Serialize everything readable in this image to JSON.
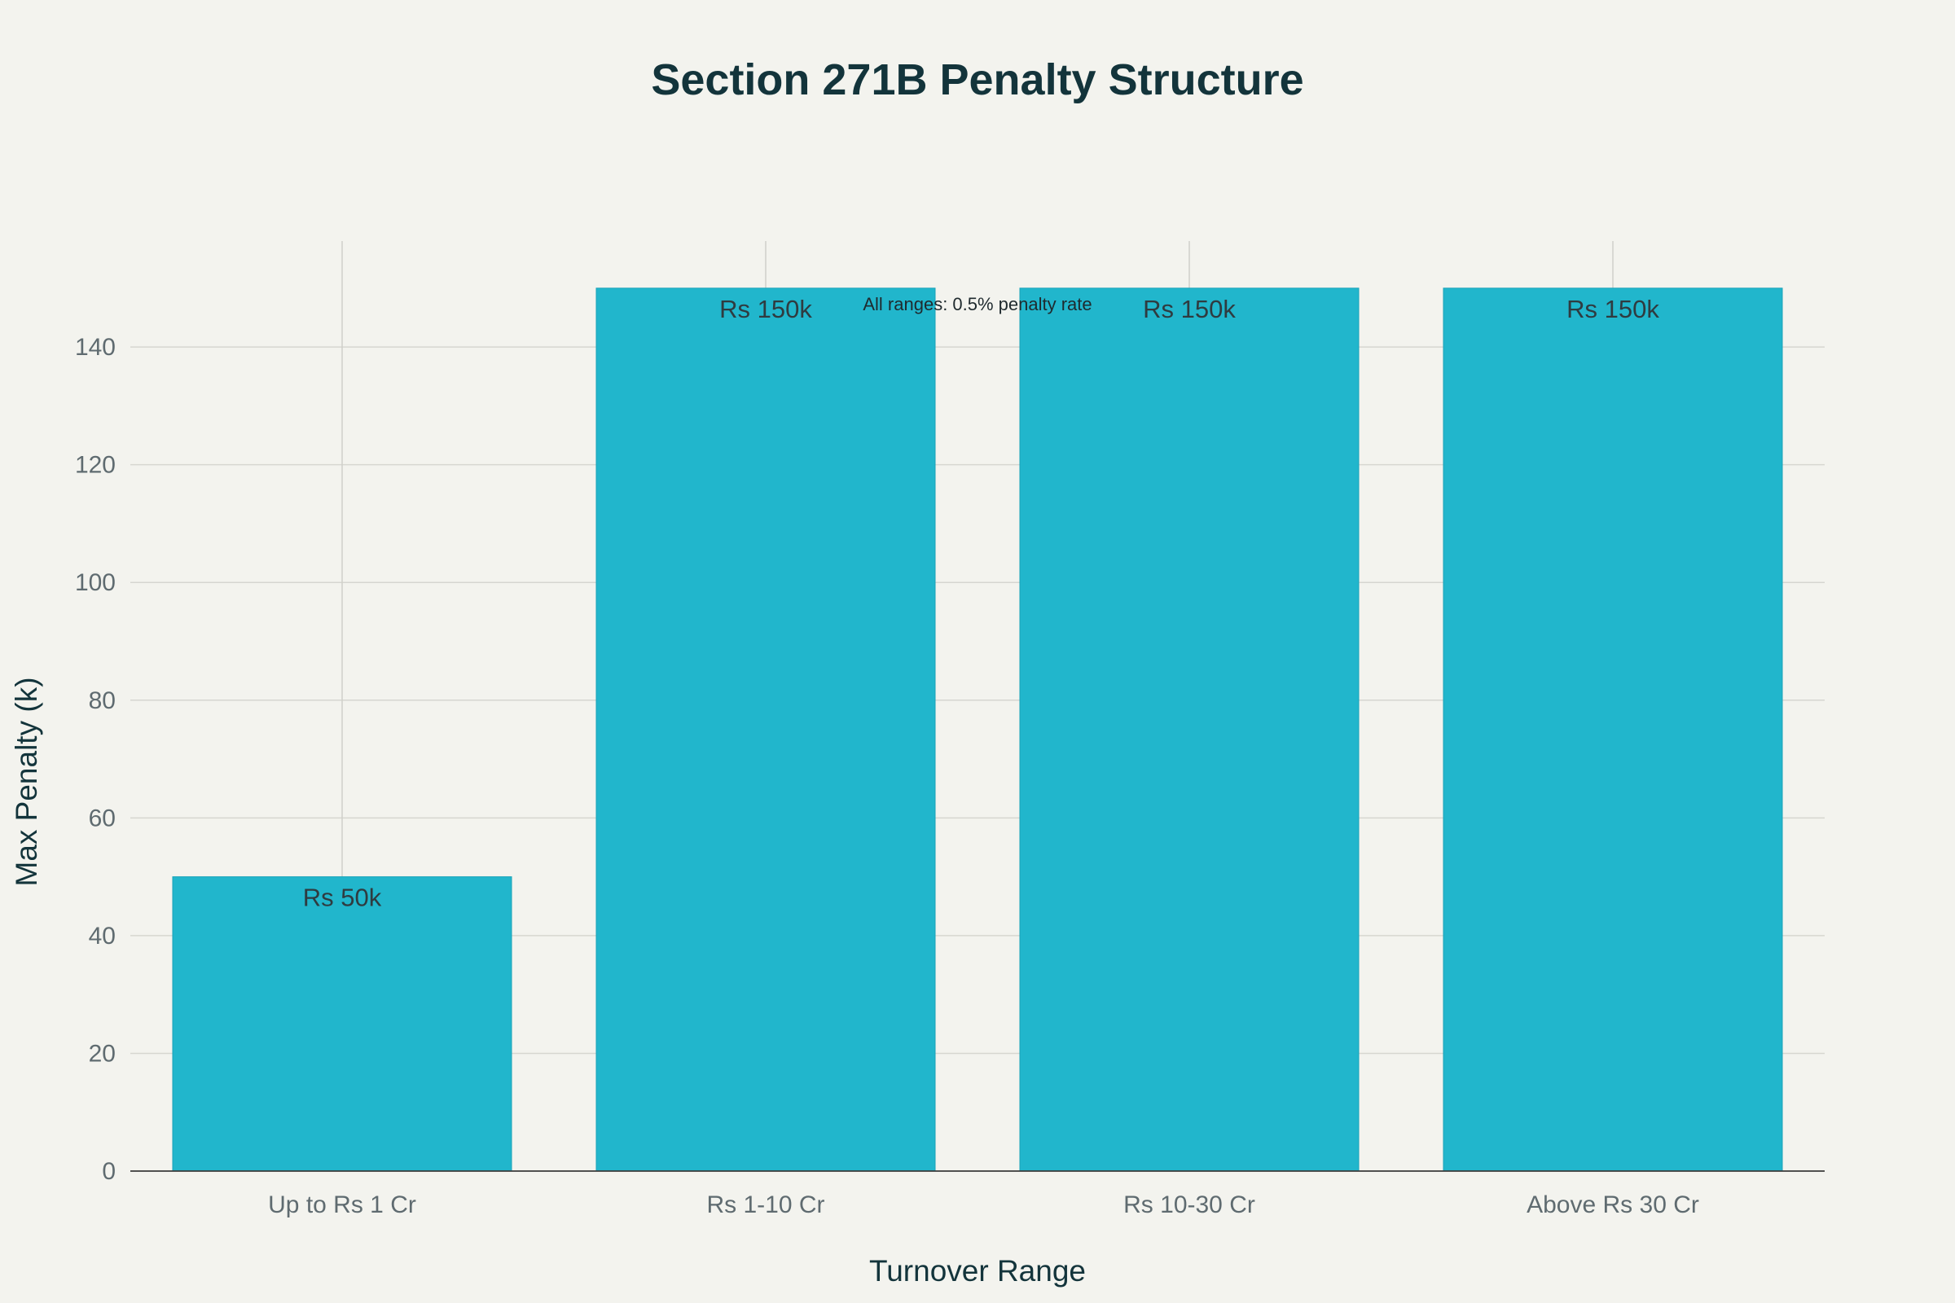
{
  "chart_data": {
    "type": "bar",
    "title": "Section 271B Penalty Structure",
    "xlabel": "Turnover Range",
    "ylabel": "Max Penalty (k)",
    "categories": [
      "Up to Rs 1 Cr",
      "Rs 1-10 Cr",
      "Rs 10-30 Cr",
      "Above Rs 30 Cr"
    ],
    "values": [
      50,
      150,
      150,
      150
    ],
    "data_labels": [
      "Rs 50k",
      "Rs 150k",
      "Rs 150k",
      "Rs 150k"
    ],
    "ylim": [
      0,
      158
    ],
    "yticks": [
      0,
      20,
      40,
      60,
      80,
      100,
      120,
      140
    ],
    "annotation": "All ranges: 0.5% penalty rate",
    "grid": true,
    "legend": "none",
    "colors": {
      "bar": "#21b6cc",
      "background": "#f3f3ee",
      "text": "#13343b"
    }
  }
}
